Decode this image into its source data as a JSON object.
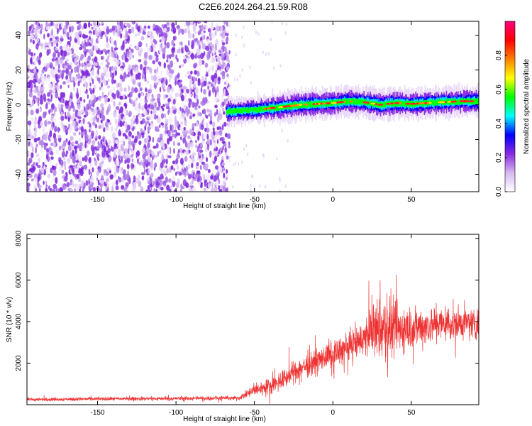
{
  "title": "C2E6.2024.264.21.59.R08",
  "chart_data": [
    {
      "type": "heatmap",
      "xlabel": "Height of straight line (km)",
      "ylabel": "Frequency (Hz)",
      "xlim": [
        -195,
        93
      ],
      "ylim": [
        -50,
        48
      ],
      "x_ticks": [
        -150,
        -100,
        -50,
        0,
        50
      ],
      "y_ticks": [
        -40,
        -20,
        0,
        20,
        40
      ],
      "x_tick_labels": [
        "-150",
        "-100",
        "-50",
        "0",
        "50"
      ],
      "y_tick_labels": [
        "-40",
        "-20",
        "0",
        "20",
        "40"
      ],
      "colorbar": {
        "label": "Normalized spectral amplitude",
        "range": [
          0,
          1
        ],
        "ticks": [
          0,
          0.2,
          0.4,
          0.6,
          0.8
        ],
        "tick_labels": [
          "0.0",
          "0.2",
          "0.4",
          "0.6",
          "0.8"
        ],
        "colors": [
          "#ffffff",
          "#d6b8f0",
          "#8a2be2",
          "#0000ff",
          "#00ffff",
          "#00ff00",
          "#ffff00",
          "#ff8000",
          "#ff0000",
          "#ff0080"
        ]
      },
      "noise_region": {
        "x_start": -195,
        "x_end": -68
      },
      "ridge": {
        "x": [
          -68,
          -60,
          -50,
          -40,
          -30,
          -20,
          -10,
          0,
          10,
          20,
          30,
          40,
          50,
          60,
          70,
          80,
          93
        ],
        "y": [
          -4,
          -3.5,
          -3,
          -2,
          -1,
          0,
          0.5,
          1,
          2,
          1.5,
          0,
          1,
          0.5,
          1,
          1.5,
          2,
          2
        ]
      }
    },
    {
      "type": "line",
      "xlabel": "Height of straight line (km)",
      "ylabel": "SNR (10 * v/v)",
      "xlim": [
        -195,
        93
      ],
      "ylim": [
        0,
        8200
      ],
      "x_ticks": [
        -150,
        -100,
        -50,
        0,
        50
      ],
      "y_ticks": [
        2000,
        4000,
        6000,
        8000
      ],
      "x_tick_labels": [
        "-150",
        "-100",
        "-50",
        "0",
        "50"
      ],
      "y_tick_labels": [
        "2000",
        "4000",
        "6000",
        "8000"
      ],
      "line_color": "#ee3333",
      "series_envelope": {
        "x": [
          -195,
          -150,
          -100,
          -60,
          -55,
          -50,
          -40,
          -30,
          -20,
          -10,
          0,
          10,
          20,
          25,
          30,
          35,
          40,
          50,
          60,
          70,
          80,
          93
        ],
        "mean": [
          250,
          280,
          300,
          320,
          500,
          700,
          900,
          1300,
          1800,
          2100,
          2400,
          2800,
          3200,
          3600,
          3600,
          3700,
          3600,
          3700,
          3800,
          3900,
          3900,
          3900
        ],
        "spread": [
          120,
          130,
          140,
          150,
          300,
          450,
          600,
          700,
          800,
          900,
          1000,
          1100,
          1300,
          1900,
          2200,
          2600,
          1900,
          1500,
          1400,
          1300,
          1200,
          1100
        ]
      }
    }
  ]
}
